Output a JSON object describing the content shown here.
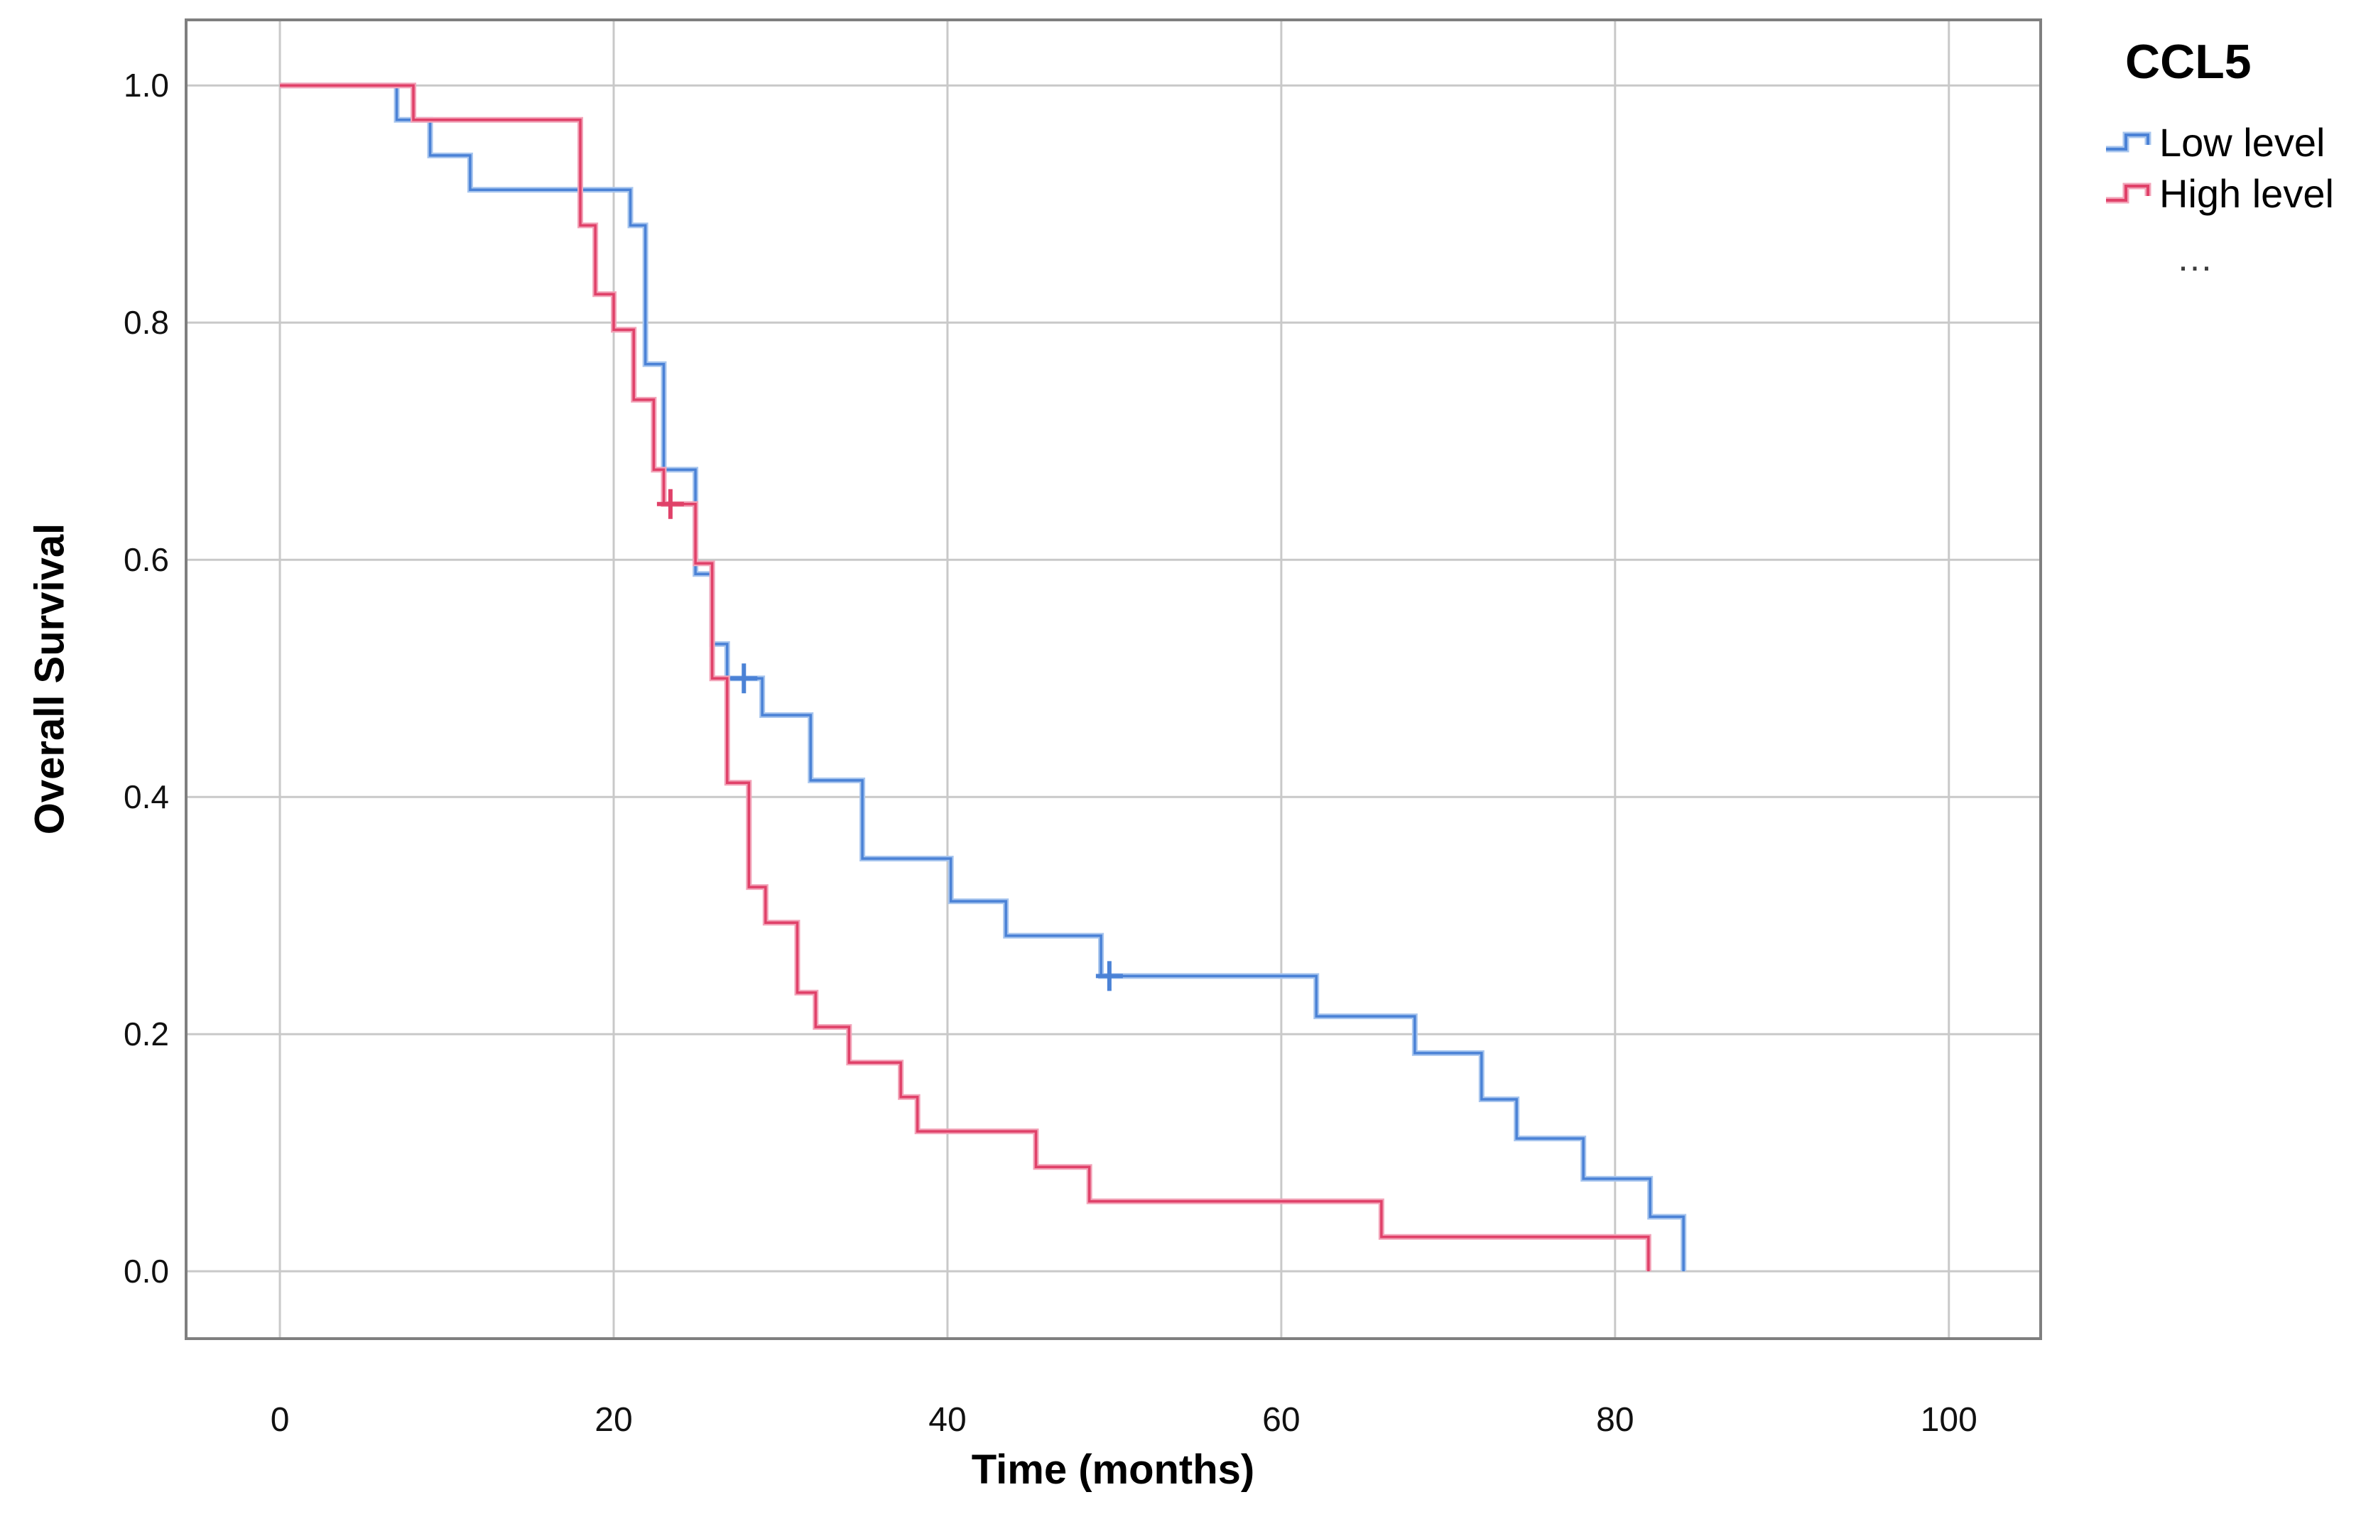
{
  "chart_data": {
    "type": "line",
    "subtype": "kaplan-meier-step",
    "title": "CCL5",
    "xlabel": "Time (months)",
    "ylabel": "Overall Survival",
    "xlim": [
      -5.62,
      105.5
    ],
    "ylim": [
      -0.0568,
      1.0553
    ],
    "grid": true,
    "legend_position": "top-right",
    "legend_title": "CCL5",
    "legend_ellipsis": "…",
    "x_ticks": [
      {
        "value": 0,
        "label": "0"
      },
      {
        "value": 20,
        "label": "20"
      },
      {
        "value": 40,
        "label": "40"
      },
      {
        "value": 60,
        "label": "60"
      },
      {
        "value": 80,
        "label": "80"
      },
      {
        "value": 100,
        "label": "100"
      }
    ],
    "y_ticks": [
      {
        "value": 1.0,
        "label": "1.0"
      },
      {
        "value": 0.8,
        "label": "0.8"
      },
      {
        "value": 0.6,
        "label": "0.6"
      },
      {
        "value": 0.4,
        "label": "0.4"
      },
      {
        "value": 0.2,
        "label": "0.2"
      },
      {
        "value": 0.0,
        "label": "0.0"
      }
    ],
    "colors": {
      "grid": "#c9c9c9",
      "frame": "#7f7f7f",
      "background": "#ffffff",
      "text": "#000000"
    },
    "series": [
      {
        "name": "Low level",
        "color_core": "#4b82d6",
        "color_halo": "#a7c5ee",
        "points": [
          [
            0,
            1.0
          ],
          [
            7,
            0.971
          ],
          [
            9,
            0.941
          ],
          [
            11.4,
            0.912
          ],
          [
            21,
            0.882
          ],
          [
            21.9,
            0.765
          ],
          [
            23,
            0.676
          ],
          [
            24.9,
            0.588
          ],
          [
            25.9,
            0.529
          ],
          [
            26.8,
            0.5
          ],
          [
            28.9,
            0.469
          ],
          [
            31.8,
            0.414
          ],
          [
            34.9,
            0.348
          ],
          [
            40.2,
            0.312
          ],
          [
            43.5,
            0.283
          ],
          [
            49.2,
            0.249
          ],
          [
            62.1,
            0.215
          ],
          [
            68,
            0.184
          ],
          [
            72,
            0.145
          ],
          [
            74.1,
            0.112
          ],
          [
            78.1,
            0.078
          ],
          [
            82.1,
            0.046
          ],
          [
            84.1,
            0
          ]
        ],
        "censored": [
          [
            27.8,
            0.5
          ],
          [
            49.7,
            0.249
          ]
        ]
      },
      {
        "name": "High level",
        "color_core": "#e04169",
        "color_halo": "#f2a3b8",
        "points": [
          [
            0,
            1.0
          ],
          [
            8,
            0.971
          ],
          [
            18,
            0.882
          ],
          [
            18.9,
            0.824
          ],
          [
            20,
            0.794
          ],
          [
            21.2,
            0.735
          ],
          [
            22.4,
            0.676
          ],
          [
            23,
            0.647
          ],
          [
            24.9,
            0.597
          ],
          [
            25.9,
            0.5
          ],
          [
            26.8,
            0.412
          ],
          [
            28.1,
            0.324
          ],
          [
            29.1,
            0.294
          ],
          [
            31,
            0.235
          ],
          [
            32.1,
            0.206
          ],
          [
            34.1,
            0.176
          ],
          [
            37.2,
            0.147
          ],
          [
            38.2,
            0.118
          ],
          [
            45.3,
            0.088
          ],
          [
            48.5,
            0.059
          ],
          [
            66,
            0.029
          ],
          [
            82,
            0
          ]
        ],
        "censored": [
          [
            23.4,
            0.647
          ]
        ]
      }
    ]
  }
}
